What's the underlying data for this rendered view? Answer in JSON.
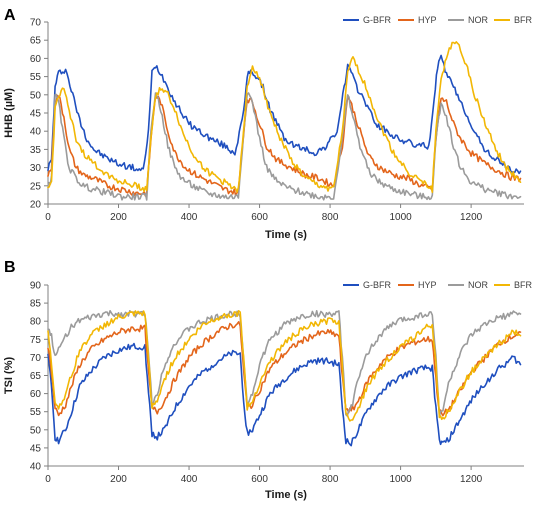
{
  "chart_data": [
    {
      "panel_label": "A",
      "type": "line",
      "xlabel": "Time (s)",
      "ylabel": "HHB (µM)",
      "xlim": [
        0,
        1350
      ],
      "ylim": [
        20,
        70
      ],
      "xticks": [
        0,
        200,
        400,
        600,
        800,
        1000,
        1200
      ],
      "yticks": [
        20,
        25,
        30,
        35,
        40,
        45,
        50,
        55,
        60,
        65,
        70
      ],
      "grid": false,
      "legend_position": "top-right",
      "series": [
        {
          "name": "G-BFR",
          "color": "#1f4fbf",
          "x": [
            0,
            10,
            20,
            30,
            50,
            70,
            90,
            110,
            130,
            160,
            200,
            240,
            270,
            285,
            295,
            305,
            320,
            340,
            360,
            380,
            400,
            430,
            460,
            500,
            530,
            555,
            565,
            575,
            590,
            610,
            630,
            650,
            670,
            700,
            730,
            760,
            790,
            820,
            840,
            850,
            860,
            875,
            890,
            910,
            930,
            960,
            990,
            1020,
            1050,
            1080,
            1095,
            1105,
            1115,
            1130,
            1150,
            1170,
            1190,
            1210,
            1230,
            1260,
            1290,
            1320,
            1340
          ],
          "y": [
            30,
            32,
            52,
            56,
            57,
            50,
            43,
            38,
            35,
            33,
            31,
            30,
            29,
            40,
            56,
            58,
            56,
            52,
            48,
            45,
            42,
            40,
            38,
            36,
            34,
            45,
            55,
            57,
            55,
            52,
            46,
            42,
            38,
            36,
            35,
            34,
            36,
            40,
            52,
            58,
            56,
            52,
            50,
            46,
            42,
            40,
            38,
            37,
            36,
            36,
            48,
            58,
            60,
            56,
            52,
            48,
            44,
            40,
            36,
            33,
            31,
            29,
            29
          ]
        },
        {
          "name": "HYP",
          "color": "#e3651b",
          "x": [
            0,
            10,
            20,
            30,
            45,
            60,
            80,
            100,
            130,
            170,
            210,
            250,
            280,
            292,
            305,
            320,
            340,
            360,
            390,
            420,
            460,
            500,
            540,
            555,
            565,
            580,
            600,
            620,
            650,
            690,
            730,
            770,
            810,
            835,
            850,
            865,
            885,
            910,
            940,
            980,
            1020,
            1060,
            1090,
            1100,
            1115,
            1130,
            1150,
            1170,
            1200,
            1240,
            1280,
            1320,
            1340
          ],
          "y": [
            28,
            30,
            48,
            50,
            44,
            35,
            30,
            28,
            27,
            25,
            24,
            23,
            23,
            38,
            50,
            48,
            40,
            34,
            30,
            28,
            26,
            24,
            23,
            40,
            49,
            48,
            42,
            36,
            32,
            30,
            28,
            27,
            25,
            36,
            50,
            46,
            40,
            33,
            30,
            28,
            27,
            25,
            24,
            38,
            49,
            48,
            42,
            38,
            34,
            31,
            29,
            27,
            27
          ]
        },
        {
          "name": "NOR",
          "color": "#9b9b9b",
          "x": [
            0,
            10,
            20,
            30,
            45,
            60,
            80,
            100,
            130,
            170,
            210,
            250,
            280,
            292,
            305,
            320,
            340,
            360,
            380,
            410,
            450,
            500,
            540,
            555,
            565,
            580,
            600,
            620,
            650,
            690,
            730,
            770,
            810,
            835,
            850,
            865,
            885,
            910,
            940,
            980,
            1020,
            1060,
            1090,
            1100,
            1115,
            1130,
            1150,
            1170,
            1200,
            1240,
            1280,
            1320,
            1340
          ],
          "y": [
            25,
            27,
            50,
            48,
            38,
            30,
            27,
            25,
            24,
            23,
            22,
            22,
            22,
            40,
            51,
            46,
            36,
            30,
            27,
            25,
            23,
            22,
            22,
            40,
            51,
            48,
            38,
            30,
            26,
            24,
            23,
            22,
            22,
            38,
            50,
            44,
            36,
            29,
            26,
            24,
            23,
            22,
            22,
            38,
            48,
            44,
            36,
            30,
            26,
            24,
            23,
            22,
            22
          ]
        },
        {
          "name": "BFR",
          "color": "#f2b705",
          "x": [
            0,
            10,
            20,
            30,
            45,
            60,
            80,
            100,
            130,
            170,
            210,
            250,
            280,
            292,
            305,
            320,
            340,
            360,
            380,
            410,
            450,
            500,
            540,
            555,
            565,
            580,
            600,
            620,
            650,
            690,
            730,
            770,
            810,
            835,
            850,
            865,
            885,
            910,
            940,
            980,
            1020,
            1060,
            1090,
            1100,
            1115,
            1130,
            1150,
            1170,
            1190,
            1210,
            1240,
            1270,
            1300,
            1340
          ],
          "y": [
            24,
            26,
            46,
            50,
            52,
            45,
            38,
            34,
            31,
            28,
            26,
            25,
            24,
            38,
            50,
            52,
            50,
            46,
            40,
            34,
            29,
            26,
            24,
            40,
            52,
            58,
            55,
            48,
            40,
            32,
            27,
            25,
            24,
            40,
            56,
            60,
            56,
            50,
            42,
            34,
            29,
            26,
            24,
            40,
            55,
            60,
            65,
            63,
            57,
            50,
            42,
            35,
            30,
            26
          ]
        }
      ]
    },
    {
      "panel_label": "B",
      "type": "line",
      "xlabel": "Time (s)",
      "ylabel": "TSI (%)",
      "xlim": [
        0,
        1350
      ],
      "ylim": [
        40,
        90
      ],
      "xticks": [
        0,
        200,
        400,
        600,
        800,
        1000,
        1200
      ],
      "yticks": [
        40,
        45,
        50,
        55,
        60,
        65,
        70,
        75,
        80,
        85,
        90
      ],
      "grid": false,
      "legend_position": "top-right",
      "series": [
        {
          "name": "G-BFR",
          "color": "#1f4fbf",
          "x": [
            0,
            10,
            20,
            30,
            50,
            70,
            90,
            120,
            160,
            200,
            240,
            275,
            285,
            295,
            310,
            330,
            360,
            400,
            440,
            480,
            520,
            545,
            555,
            565,
            580,
            600,
            630,
            670,
            710,
            750,
            790,
            825,
            835,
            845,
            860,
            880,
            910,
            950,
            990,
            1030,
            1070,
            1090,
            1100,
            1110,
            1120,
            1140,
            1170,
            1200,
            1240,
            1280,
            1320,
            1340
          ],
          "y": [
            70,
            62,
            48,
            47,
            50,
            56,
            62,
            66,
            70,
            72,
            73,
            73,
            60,
            49,
            48,
            50,
            56,
            62,
            66,
            69,
            71,
            71,
            58,
            49,
            50,
            54,
            60,
            64,
            67,
            69,
            69,
            68,
            56,
            47,
            46,
            50,
            56,
            61,
            64,
            66,
            67,
            67,
            56,
            47,
            46,
            48,
            53,
            58,
            63,
            67,
            70,
            68
          ]
        },
        {
          "name": "HYP",
          "color": "#e3651b",
          "x": [
            0,
            10,
            20,
            30,
            50,
            70,
            90,
            120,
            160,
            200,
            240,
            275,
            285,
            295,
            310,
            330,
            360,
            400,
            440,
            480,
            520,
            545,
            555,
            565,
            580,
            600,
            630,
            670,
            710,
            750,
            790,
            825,
            835,
            845,
            860,
            880,
            910,
            950,
            990,
            1030,
            1070,
            1090,
            1100,
            1110,
            1120,
            1140,
            1170,
            1200,
            1240,
            1280,
            1320,
            1340
          ],
          "y": [
            73,
            66,
            56,
            54,
            57,
            63,
            68,
            72,
            75,
            77,
            78,
            78,
            66,
            56,
            55,
            58,
            64,
            70,
            74,
            77,
            79,
            79,
            66,
            56,
            57,
            61,
            67,
            71,
            74,
            76,
            77,
            76,
            64,
            56,
            55,
            58,
            64,
            69,
            72,
            74,
            75,
            75,
            64,
            55,
            54,
            56,
            61,
            66,
            70,
            74,
            76,
            77
          ]
        },
        {
          "name": "NOR",
          "color": "#9b9b9b",
          "x": [
            0,
            10,
            20,
            30,
            50,
            70,
            90,
            120,
            160,
            200,
            240,
            275,
            285,
            295,
            310,
            330,
            360,
            400,
            440,
            480,
            520,
            545,
            555,
            565,
            580,
            600,
            630,
            670,
            710,
            750,
            790,
            825,
            835,
            845,
            860,
            880,
            910,
            950,
            990,
            1030,
            1070,
            1090,
            1100,
            1110,
            1120,
            1140,
            1170,
            1200,
            1240,
            1280,
            1320,
            1340
          ],
          "y": [
            78,
            76,
            70,
            72,
            76,
            79,
            80,
            81,
            82,
            82,
            82,
            82,
            72,
            57,
            60,
            68,
            74,
            78,
            80,
            81,
            82,
            82,
            70,
            57,
            60,
            68,
            75,
            79,
            81,
            82,
            82,
            82,
            70,
            54,
            56,
            64,
            72,
            77,
            80,
            81,
            82,
            82,
            70,
            54,
            56,
            64,
            71,
            76,
            79,
            81,
            82,
            82
          ]
        },
        {
          "name": "BFR",
          "color": "#f2b705",
          "x": [
            0,
            10,
            20,
            30,
            50,
            70,
            90,
            120,
            160,
            200,
            240,
            275,
            285,
            295,
            310,
            330,
            360,
            400,
            440,
            480,
            520,
            545,
            555,
            565,
            580,
            600,
            630,
            670,
            710,
            750,
            790,
            825,
            835,
            845,
            860,
            880,
            910,
            950,
            990,
            1030,
            1070,
            1090,
            1100,
            1110,
            1120,
            1140,
            1170,
            1200,
            1240,
            1280,
            1320,
            1340
          ],
          "y": [
            77,
            68,
            58,
            56,
            60,
            66,
            72,
            76,
            79,
            81,
            82,
            82,
            70,
            56,
            58,
            64,
            70,
            75,
            79,
            81,
            82,
            82,
            70,
            56,
            58,
            63,
            69,
            74,
            77,
            79,
            80,
            80,
            68,
            54,
            53,
            56,
            63,
            68,
            72,
            75,
            78,
            79,
            68,
            54,
            53,
            56,
            61,
            66,
            70,
            74,
            77,
            76
          ]
        }
      ]
    }
  ]
}
